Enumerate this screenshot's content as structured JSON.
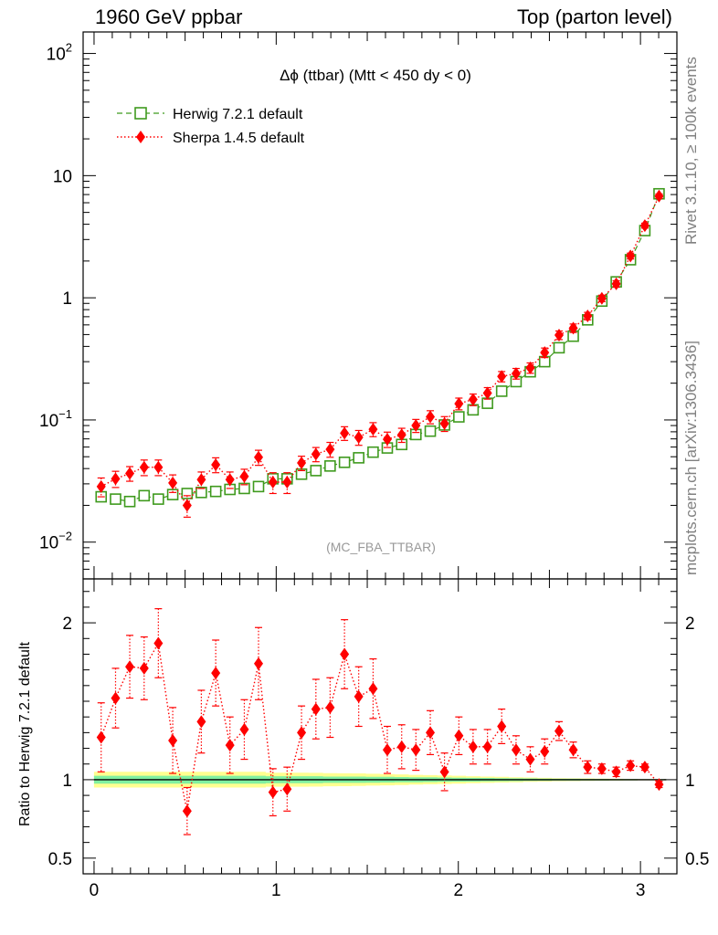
{
  "header": {
    "left": "1960 GeV ppbar",
    "right": "Top (parton level)"
  },
  "side_labels": {
    "rivet": "Rivet 3.1.10, ≥ 100k events",
    "mcplots": "mcplots.cern.ch [arXiv:1306.3436]"
  },
  "plot": {
    "title": "Δϕ (ttbar) (Mtt < 450 dy < 0)",
    "analysis_tag": "(MC_FBA_TTBAR)",
    "ratio_ylabel": "Ratio to Herwig 7.2.1 default"
  },
  "colors": {
    "herwig": "#3f9a1e",
    "sherpa": "#ff0000",
    "band_inner": "#80f0a0",
    "band_outer": "#ffff90"
  },
  "chart_data": [
    {
      "type": "scatter",
      "yscale": "log",
      "xlim": [
        -0.06,
        3.2
      ],
      "ylim": [
        0.005,
        150
      ],
      "yticks": [
        {
          "value": 0.01,
          "label": "10",
          "exp": "−2"
        },
        {
          "value": 0.1,
          "label": "10",
          "exp": "−1"
        },
        {
          "value": 1,
          "label": "1",
          "exp": ""
        },
        {
          "value": 10,
          "label": "10",
          "exp": ""
        },
        {
          "value": 100,
          "label": "10",
          "exp": "2"
        }
      ],
      "legend_position": "top-left",
      "x": [
        0.039,
        0.118,
        0.196,
        0.275,
        0.353,
        0.432,
        0.511,
        0.589,
        0.668,
        0.746,
        0.825,
        0.903,
        0.982,
        1.06,
        1.139,
        1.218,
        1.296,
        1.375,
        1.453,
        1.532,
        1.61,
        1.689,
        1.767,
        1.846,
        1.924,
        2.003,
        2.081,
        2.16,
        2.238,
        2.317,
        2.395,
        2.474,
        2.553,
        2.631,
        2.71,
        2.788,
        2.867,
        2.945,
        3.024,
        3.102
      ],
      "series": [
        {
          "name": "Herwig 7.2.1 default",
          "marker": "open-square",
          "line": "dashed",
          "values": [
            0.0235,
            0.0225,
            0.0215,
            0.024,
            0.0225,
            0.0245,
            0.025,
            0.0255,
            0.026,
            0.027,
            0.0275,
            0.0285,
            0.033,
            0.033,
            0.036,
            0.0385,
            0.042,
            0.045,
            0.049,
            0.0545,
            0.059,
            0.063,
            0.076,
            0.081,
            0.091,
            0.106,
            0.121,
            0.137,
            0.172,
            0.206,
            0.248,
            0.3,
            0.39,
            0.485,
            0.66,
            0.94,
            1.35,
            2.05,
            3.55,
            7.1
          ]
        },
        {
          "name": "Sherpa 1.4.5 default",
          "marker": "filled-diamond",
          "line": "dotted",
          "values": [
            0.0285,
            0.033,
            0.0365,
            0.041,
            0.041,
            0.0305,
            0.02,
            0.0325,
            0.043,
            0.0325,
            0.0345,
            0.0495,
            0.031,
            0.031,
            0.0445,
            0.0525,
            0.0575,
            0.078,
            0.072,
            0.084,
            0.0695,
            0.0755,
            0.09,
            0.106,
            0.0935,
            0.136,
            0.147,
            0.166,
            0.227,
            0.24,
            0.267,
            0.356,
            0.495,
            0.565,
            0.71,
            0.99,
            1.3,
            2.2,
            3.9,
            6.8
          ],
          "errors": [
            0.005,
            0.005,
            0.005,
            0.006,
            0.006,
            0.005,
            0.004,
            0.005,
            0.006,
            0.005,
            0.005,
            0.007,
            0.006,
            0.006,
            0.006,
            0.007,
            0.008,
            0.01,
            0.01,
            0.011,
            0.01,
            0.01,
            0.011,
            0.013,
            0.013,
            0.015,
            0.016,
            0.018,
            0.022,
            0.024,
            0.026,
            0.032,
            0.04,
            0.045,
            0.05,
            0.06,
            0.08,
            0.12,
            0.18,
            0.28
          ]
        }
      ]
    },
    {
      "type": "scatter",
      "xlim": [
        -0.06,
        3.2
      ],
      "ylim": [
        0.4,
        2.28
      ],
      "yticks": [
        0.5,
        1,
        2
      ],
      "xticks": [
        0,
        1,
        2,
        3
      ],
      "reference_line": 1,
      "series": [
        {
          "name": "Sherpa 1.4.5 default",
          "marker": "filled-diamond",
          "line": "dotted",
          "values": [
            1.27,
            1.52,
            1.72,
            1.71,
            1.87,
            1.25,
            0.8,
            1.37,
            1.68,
            1.22,
            1.32,
            1.74,
            0.92,
            0.94,
            1.3,
            1.45,
            1.46,
            1.8,
            1.53,
            1.58,
            1.19,
            1.21,
            1.19,
            1.3,
            1.05,
            1.28,
            1.21,
            1.21,
            1.34,
            1.19,
            1.13,
            1.18,
            1.31,
            1.19,
            1.08,
            1.07,
            1.05,
            1.09,
            1.08,
            0.97
          ],
          "errors": [
            0.22,
            0.19,
            0.2,
            0.2,
            0.22,
            0.21,
            0.15,
            0.2,
            0.21,
            0.18,
            0.19,
            0.23,
            0.15,
            0.14,
            0.17,
            0.19,
            0.19,
            0.22,
            0.19,
            0.19,
            0.15,
            0.14,
            0.13,
            0.14,
            0.12,
            0.12,
            0.11,
            0.11,
            0.11,
            0.09,
            0.08,
            0.08,
            0.06,
            0.05,
            0.04,
            0.03,
            0.03,
            0.03,
            0.02,
            0.02
          ]
        }
      ],
      "band": {
        "inner": [
          0.025,
          0.025,
          0.025,
          0.025,
          0.025,
          0.025,
          0.025,
          0.025,
          0.025,
          0.025,
          0.025,
          0.025,
          0.022,
          0.022,
          0.022,
          0.022,
          0.02,
          0.02,
          0.02,
          0.019,
          0.018,
          0.017,
          0.016,
          0.015,
          0.014,
          0.013,
          0.012,
          0.011,
          0.01,
          0.009,
          0.008,
          0.007,
          0.006,
          0.006,
          0.005,
          0.005,
          0.004,
          0.004,
          0.003,
          0.003
        ],
        "outer": [
          0.05,
          0.05,
          0.05,
          0.05,
          0.05,
          0.05,
          0.05,
          0.05,
          0.05,
          0.05,
          0.05,
          0.05,
          0.045,
          0.045,
          0.045,
          0.044,
          0.042,
          0.041,
          0.04,
          0.038,
          0.036,
          0.034,
          0.031,
          0.029,
          0.027,
          0.025,
          0.022,
          0.02,
          0.018,
          0.016,
          0.014,
          0.012,
          0.01,
          0.009,
          0.008,
          0.007,
          0.006,
          0.005,
          0.004,
          0.004
        ]
      }
    }
  ]
}
